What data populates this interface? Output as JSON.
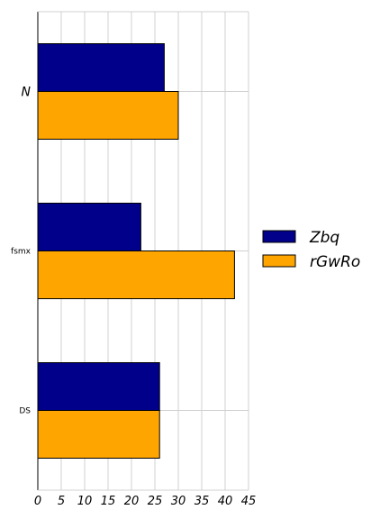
{
  "chart_data": {
    "type": "bar",
    "orientation": "horizontal",
    "categories": [
      "N",
      "fsmx",
      "DS"
    ],
    "series": [
      {
        "name": "Zbq",
        "values": [
          27,
          22,
          26
        ],
        "color": "#00008b"
      },
      {
        "name": "rGwRo",
        "values": [
          30,
          42,
          26
        ],
        "color": "#ffa500"
      }
    ],
    "xlim": [
      0,
      45
    ],
    "xticks": [
      "0",
      "5",
      "10",
      "15",
      "20",
      "25",
      "30",
      "35",
      "40",
      "45"
    ],
    "title": "",
    "xlabel": "",
    "ylabel": "",
    "grid": true,
    "legend_position": "right"
  }
}
